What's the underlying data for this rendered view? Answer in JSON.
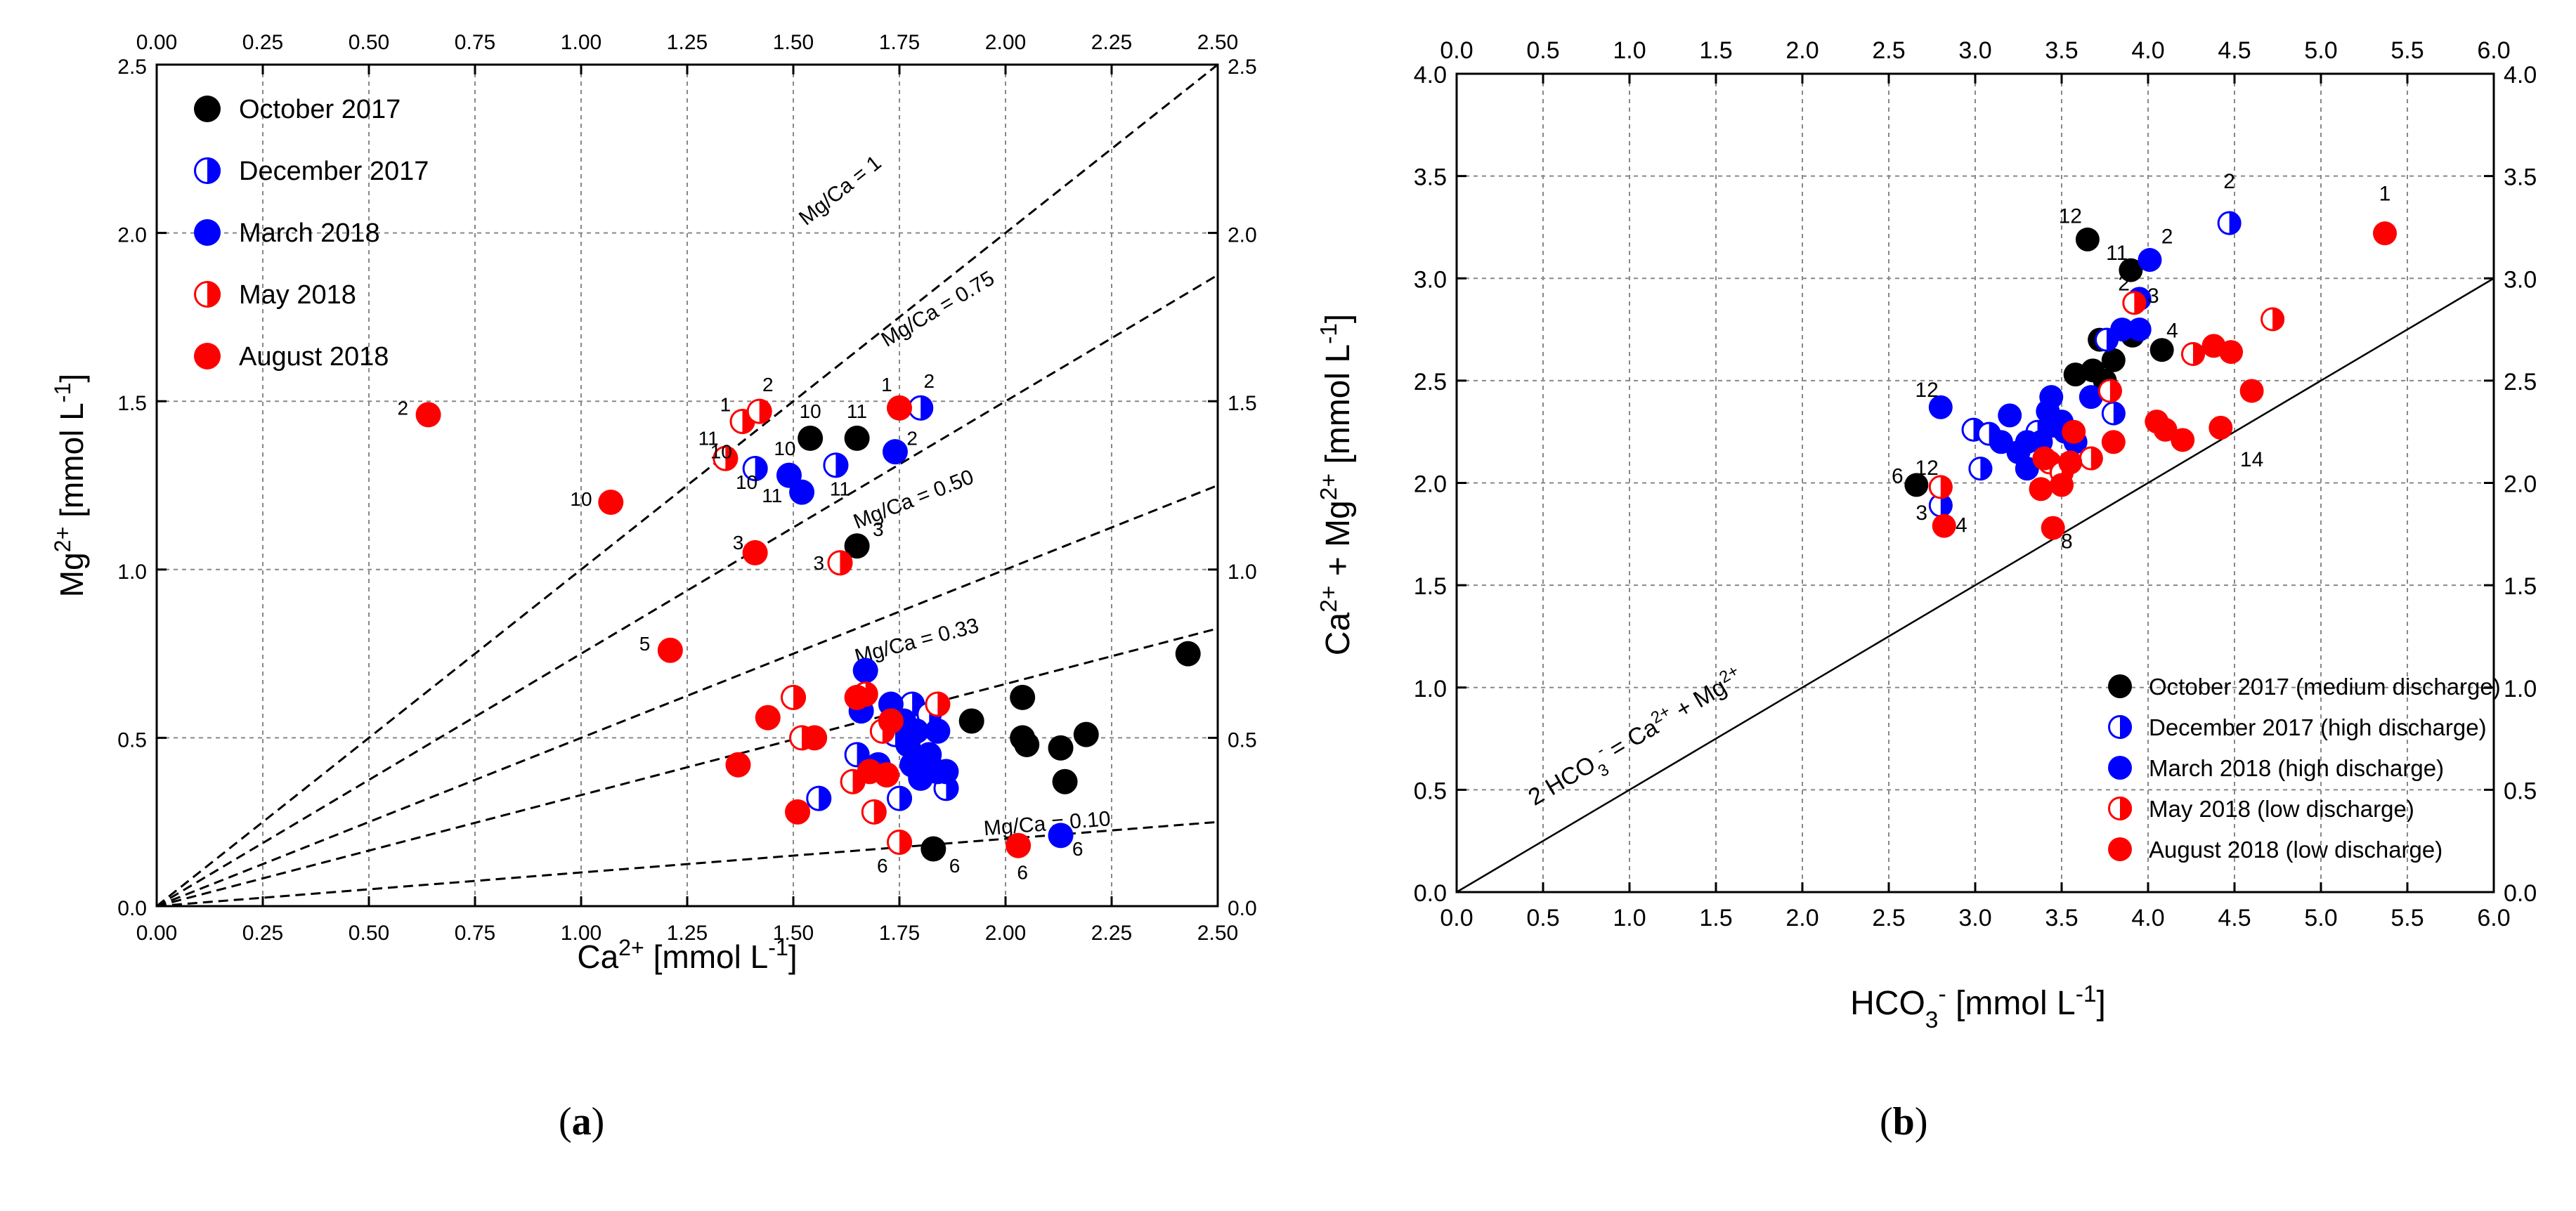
{
  "chart_data": [
    {
      "type": "scatter",
      "panel": "(a)",
      "xlabel": "Ca2+ [mmol L-1]",
      "ylabel": "Mg2+ [mmol L-1]",
      "xlim": [
        0,
        2.5
      ],
      "ylim": [
        0,
        2.5
      ],
      "ticks": [
        "0.00",
        "0.25",
        "0.50",
        "0.75",
        "1.00",
        "1.25",
        "1.50",
        "1.75",
        "2.00",
        "2.25",
        "2.50"
      ],
      "ytick_values": [
        0.0,
        0.5,
        1.0,
        1.5,
        2.0,
        2.5
      ],
      "ytick_labels": [
        "0.0",
        "0.5",
        "1.0",
        "1.5",
        "2.0",
        "2.5"
      ],
      "legend_position": "top-left",
      "ratio_lines": [
        {
          "label": "Mg/Ca = 1",
          "ratio": 1.0
        },
        {
          "label": "Mg/Ca = 0.75",
          "ratio": 0.75
        },
        {
          "label": "Mg/Ca = 0.50",
          "ratio": 0.5
        },
        {
          "label": "Mg/Ca = 0.33",
          "ratio": 0.33
        },
        {
          "label": "Mg/Ca = 0.10",
          "ratio": 0.1
        }
      ],
      "series": [
        {
          "name": "October 2017",
          "color": "#000000",
          "marker": "full",
          "points": [
            [
              1.54,
              1.39
            ],
            [
              1.65,
              1.39
            ],
            [
              1.65,
              1.07
            ],
            [
              2.04,
              0.62
            ],
            [
              2.04,
              0.5
            ],
            [
              2.05,
              0.48
            ],
            [
              2.13,
              0.47
            ],
            [
              2.14,
              0.37
            ],
            [
              2.19,
              0.51
            ],
            [
              1.92,
              0.55
            ],
            [
              1.83,
              0.17
            ],
            [
              2.43,
              0.75
            ]
          ]
        },
        {
          "name": "December 2017",
          "color": "#0000ff",
          "marker": "half",
          "points": [
            [
              1.41,
              1.3
            ],
            [
              1.6,
              1.31
            ],
            [
              1.8,
              1.48
            ],
            [
              1.56,
              0.32
            ],
            [
              1.75,
              0.32
            ],
            [
              1.74,
              0.51
            ],
            [
              1.78,
              0.6
            ],
            [
              1.86,
              0.35
            ],
            [
              1.65,
              0.45
            ],
            [
              1.82,
              0.57
            ]
          ]
        },
        {
          "name": "March 2018",
          "color": "#0000ff",
          "marker": "full",
          "points": [
            [
              1.49,
              1.28
            ],
            [
              1.52,
              1.23
            ],
            [
              1.74,
              1.35
            ],
            [
              1.67,
              0.7
            ],
            [
              1.73,
              0.6
            ],
            [
              1.76,
              0.55
            ],
            [
              1.77,
              0.48
            ],
            [
              1.78,
              0.42
            ],
            [
              1.8,
              0.38
            ],
            [
              1.84,
              0.4
            ],
            [
              1.86,
              0.4
            ],
            [
              1.84,
              0.52
            ],
            [
              1.79,
              0.52
            ],
            [
              1.66,
              0.58
            ],
            [
              1.7,
              0.42
            ],
            [
              2.13,
              0.21
            ],
            [
              1.82,
              0.45
            ]
          ]
        },
        {
          "name": "May 2018",
          "color": "#ff0000",
          "marker": "half",
          "points": [
            [
              1.38,
              1.44
            ],
            [
              1.42,
              1.47
            ],
            [
              1.34,
              1.33
            ],
            [
              1.61,
              1.02
            ],
            [
              1.5,
              0.62
            ],
            [
              1.52,
              0.5
            ],
            [
              1.64,
              0.37
            ],
            [
              1.69,
              0.28
            ],
            [
              1.71,
              0.52
            ],
            [
              1.67,
              0.63
            ],
            [
              1.84,
              0.6
            ],
            [
              1.75,
              0.19
            ]
          ]
        },
        {
          "name": "August 2018",
          "color": "#ff0000",
          "marker": "full",
          "points": [
            [
              0.64,
              1.46
            ],
            [
              1.07,
              1.2
            ],
            [
              1.41,
              1.05
            ],
            [
              1.21,
              0.76
            ],
            [
              1.75,
              1.48
            ],
            [
              1.44,
              0.56
            ],
            [
              1.37,
              0.42
            ],
            [
              1.55,
              0.5
            ],
            [
              1.51,
              0.28
            ],
            [
              1.65,
              0.62
            ],
            [
              1.68,
              0.4
            ],
            [
              1.72,
              0.39
            ],
            [
              1.73,
              0.55
            ],
            [
              2.03,
              0.18
            ]
          ]
        }
      ],
      "point_labels": [
        {
          "text": "1",
          "x": 1.34,
          "y": 1.47
        },
        {
          "text": "2",
          "x": 1.44,
          "y": 1.53
        },
        {
          "text": "11",
          "x": 1.3,
          "y": 1.37
        },
        {
          "text": "10",
          "x": 1.33,
          "y": 1.33
        },
        {
          "text": "10",
          "x": 1.39,
          "y": 1.24
        },
        {
          "text": "10",
          "x": 1.54,
          "y": 1.45
        },
        {
          "text": "11",
          "x": 1.65,
          "y": 1.45
        },
        {
          "text": "10",
          "x": 1.48,
          "y": 1.34
        },
        {
          "text": "11",
          "x": 1.45,
          "y": 1.2
        },
        {
          "text": "11",
          "x": 1.61,
          "y": 1.22
        },
        {
          "text": "2",
          "x": 0.58,
          "y": 1.46
        },
        {
          "text": "10",
          "x": 1.0,
          "y": 1.19
        },
        {
          "text": "3",
          "x": 1.37,
          "y": 1.06
        },
        {
          "text": "3",
          "x": 1.56,
          "y": 1.0
        },
        {
          "text": "3",
          "x": 1.7,
          "y": 1.1
        },
        {
          "text": "5",
          "x": 1.15,
          "y": 0.76
        },
        {
          "text": "1",
          "x": 1.72,
          "y": 1.53
        },
        {
          "text": "2",
          "x": 1.82,
          "y": 1.54
        },
        {
          "text": "2",
          "x": 1.78,
          "y": 1.37
        },
        {
          "text": "6",
          "x": 1.71,
          "y": 0.1
        },
        {
          "text": "6",
          "x": 1.88,
          "y": 0.1
        },
        {
          "text": "6",
          "x": 2.04,
          "y": 0.08
        },
        {
          "text": "6",
          "x": 2.17,
          "y": 0.15
        }
      ]
    },
    {
      "type": "scatter",
      "panel": "(b)",
      "xlabel": "HCO3- [mmol L-1]",
      "ylabel": "Ca2+ + Mg2+ [mmol L-1]",
      "xlim": [
        0,
        6
      ],
      "ylim": [
        0,
        4
      ],
      "ticks": [
        "0.0",
        "0.5",
        "1.0",
        "1.5",
        "2.0",
        "2.5",
        "3.0",
        "3.5",
        "4.0",
        "4.5",
        "5.0",
        "5.5",
        "6.0"
      ],
      "ytick_values": [
        0.0,
        0.5,
        1.0,
        1.5,
        2.0,
        2.5,
        3.0,
        3.5,
        4.0
      ],
      "ytick_labels": [
        "0.0",
        "0.5",
        "1.0",
        "1.5",
        "2.0",
        "2.5",
        "3.0",
        "3.5",
        "4.0"
      ],
      "legend_position": "bottom-right",
      "equiline_label": "2 HCO3- = Ca2+ + Mg2+",
      "series": [
        {
          "name": "October 2017 (medium discharge)",
          "color": "#000000",
          "marker": "full",
          "points": [
            [
              3.65,
              3.19
            ],
            [
              3.9,
              3.04
            ],
            [
              3.91,
              2.72
            ],
            [
              4.08,
              2.65
            ],
            [
              3.58,
              2.53
            ],
            [
              3.68,
              2.55
            ],
            [
              3.8,
              2.6
            ],
            [
              3.72,
              2.7
            ],
            [
              3.75,
              2.5
            ],
            [
              2.66,
              1.99
            ]
          ]
        },
        {
          "name": "December 2017 (high discharge)",
          "color": "#0000ff",
          "marker": "half",
          "points": [
            [
              4.47,
              3.27
            ],
            [
              2.99,
              2.26
            ],
            [
              3.03,
              2.07
            ],
            [
              3.08,
              2.24
            ],
            [
              3.76,
              2.7
            ],
            [
              3.8,
              2.34
            ],
            [
              2.8,
              1.89
            ],
            [
              3.36,
              2.25
            ]
          ]
        },
        {
          "name": "March 2018 (high discharge)",
          "color": "#0000ff",
          "marker": "full",
          "points": [
            [
              4.01,
              3.09
            ],
            [
              3.95,
              2.9
            ],
            [
              3.85,
              2.75
            ],
            [
              3.95,
              2.75
            ],
            [
              2.8,
              2.37
            ],
            [
              3.15,
              2.2
            ],
            [
              3.2,
              2.33
            ],
            [
              3.3,
              2.2
            ],
            [
              3.42,
              2.35
            ],
            [
              3.44,
              2.42
            ],
            [
              3.5,
              2.3
            ],
            [
              3.25,
              2.15
            ],
            [
              3.38,
              2.2
            ],
            [
              3.3,
              2.07
            ],
            [
              3.67,
              2.42
            ],
            [
              3.45,
              2.28
            ],
            [
              3.58,
              2.2
            ],
            [
              3.52,
              2.25
            ]
          ]
        },
        {
          "name": "May 2018 (low discharge)",
          "color": "#ff0000",
          "marker": "half",
          "points": [
            [
              3.92,
              2.88
            ],
            [
              2.8,
              1.98
            ],
            [
              3.78,
              2.45
            ],
            [
              4.26,
              2.63
            ],
            [
              4.72,
              2.8
            ],
            [
              3.67,
              2.12
            ],
            [
              3.43,
              2.1
            ],
            [
              3.5,
              2.05
            ]
          ]
        },
        {
          "name": "August 2018 (low discharge)",
          "color": "#ff0000",
          "marker": "full",
          "points": [
            [
              5.37,
              3.22
            ],
            [
              4.38,
              2.67
            ],
            [
              4.48,
              2.64
            ],
            [
              4.6,
              2.45
            ],
            [
              4.42,
              2.27
            ],
            [
              4.2,
              2.21
            ],
            [
              4.05,
              2.3
            ],
            [
              4.1,
              2.26
            ],
            [
              3.8,
              2.2
            ],
            [
              3.57,
              2.25
            ],
            [
              3.4,
              2.12
            ],
            [
              3.38,
              1.97
            ],
            [
              3.5,
              1.99
            ],
            [
              3.45,
              1.78
            ],
            [
              2.82,
              1.79
            ],
            [
              3.55,
              2.1
            ]
          ]
        }
      ],
      "point_labels": [
        {
          "text": "1",
          "x": 5.37,
          "y": 3.38
        },
        {
          "text": "2",
          "x": 4.47,
          "y": 3.44
        },
        {
          "text": "12",
          "x": 3.55,
          "y": 3.27
        },
        {
          "text": "11",
          "x": 3.82,
          "y": 3.09
        },
        {
          "text": "2",
          "x": 4.11,
          "y": 3.17
        },
        {
          "text": "2",
          "x": 3.86,
          "y": 2.94
        },
        {
          "text": "3",
          "x": 4.03,
          "y": 2.88
        },
        {
          "text": "4",
          "x": 4.14,
          "y": 2.71
        },
        {
          "text": "12",
          "x": 2.72,
          "y": 2.42
        },
        {
          "text": "12",
          "x": 2.72,
          "y": 2.04
        },
        {
          "text": "6",
          "x": 2.55,
          "y": 2.0
        },
        {
          "text": "3",
          "x": 2.69,
          "y": 1.82
        },
        {
          "text": "4",
          "x": 2.92,
          "y": 1.76
        },
        {
          "text": "8",
          "x": 3.53,
          "y": 1.68
        },
        {
          "text": "14",
          "x": 4.6,
          "y": 2.08
        }
      ]
    }
  ]
}
